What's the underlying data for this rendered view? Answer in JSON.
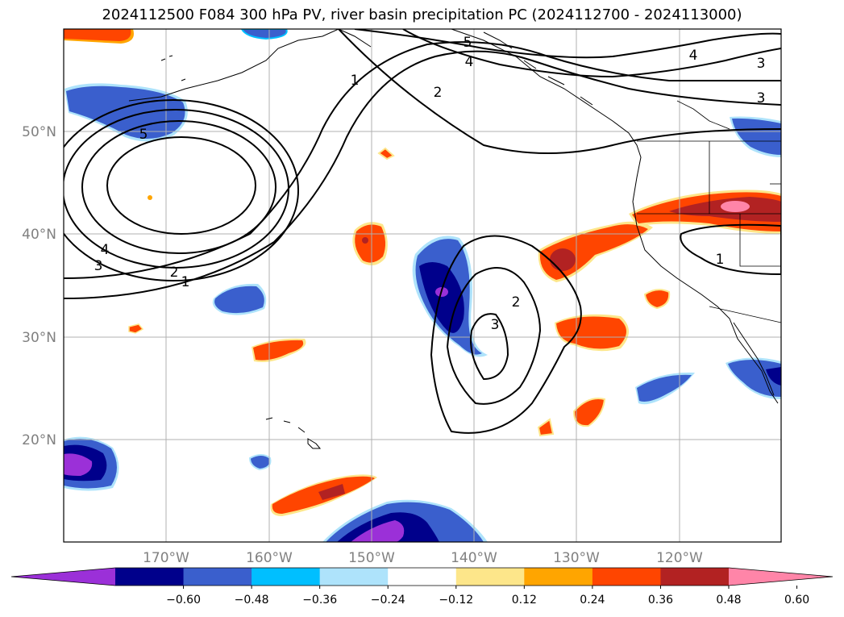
{
  "title": "2024112500 F084 300 hPa PV, river basin precipitation PC (2024112700 - 2024113000)",
  "axes": {
    "lat_labels": [
      "50°N",
      "40°N",
      "30°N",
      "20°N"
    ],
    "lon_labels": [
      "170°W",
      "160°W",
      "150°W",
      "140°W",
      "130°W",
      "120°W"
    ],
    "lat_values": [
      50,
      40,
      30,
      20
    ],
    "lon_values": [
      -170,
      -160,
      -150,
      -140,
      -130,
      -120
    ],
    "extent": {
      "lon_min": -180,
      "lon_max": -110,
      "lat_min": 10,
      "lat_max": 60
    },
    "grid": true
  },
  "contour_labels": [
    "5",
    "4",
    "1",
    "2",
    "3",
    "5",
    "4",
    "3",
    "4",
    "3",
    "2",
    "1",
    "2",
    "3",
    "1"
  ],
  "colorbar": {
    "ticks": [
      "−0.60",
      "−0.48",
      "−0.36",
      "−0.24",
      "−0.12",
      "0.12",
      "0.24",
      "0.36",
      "0.48",
      "0.60"
    ],
    "colors": [
      "#9b30d8",
      "#00008b",
      "#3a5fcd",
      "#00bfff",
      "#aee3fb",
      "#ffffff",
      "#fde68a",
      "#ffa500",
      "#ff4500",
      "#b22222",
      "#ff85a8"
    ],
    "extend": "both"
  },
  "colors": {
    "contour": "#000000",
    "grid": "#b0b0b0",
    "coast": "#000000"
  }
}
